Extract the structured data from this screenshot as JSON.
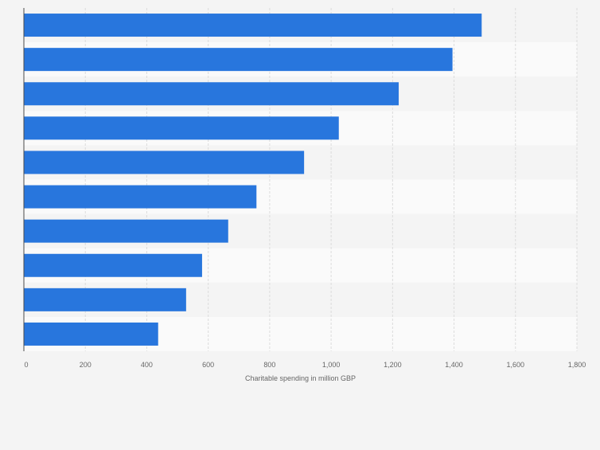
{
  "chart_data": {
    "type": "bar",
    "orientation": "horizontal",
    "categories": [
      "",
      "",
      "",
      "",
      "",
      "",
      "",
      "",
      "",
      ""
    ],
    "values": [
      1490,
      1395,
      1220,
      1025,
      912,
      757,
      665,
      580,
      528,
      437
    ],
    "xlabel": "Charitable spending in million GBP",
    "xlim": [
      0,
      1800
    ],
    "x_ticks": [
      0,
      200,
      400,
      600,
      800,
      1000,
      1200,
      1400,
      1600,
      1800
    ],
    "x_tick_labels": [
      "0",
      "200",
      "400",
      "600",
      "800",
      "1,000",
      "1,200",
      "1,400",
      "1,600",
      "1,800"
    ],
    "grid": true,
    "bar_color": "#2876dd",
    "band_colors": [
      "#f4f4f4",
      "#fafafa"
    ],
    "grid_color": "#dcdcdc",
    "axis_color": "#4a4a4a",
    "label_color": "#666666"
  }
}
